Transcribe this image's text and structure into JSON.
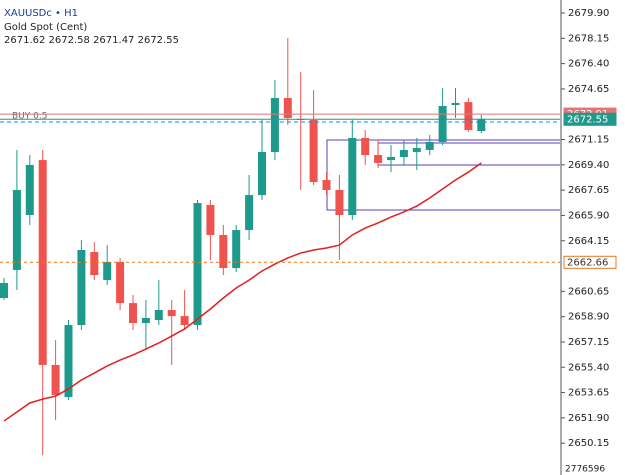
{
  "chart_data": {
    "type": "candlestick",
    "title": "XAUUSDc • H1",
    "subtitle": "Gold Spot (Cent)",
    "ohlc_text": "2671.62 2672.58 2671.47 2672.55",
    "up_color": "#1e9a8c",
    "down_color": "#ef5350",
    "open": [
      2660.19,
      2662.13,
      2665.93,
      2669.73,
      2655.56,
      2653.34,
      2658.32,
      2663.37,
      2661.43,
      2662.68,
      2659.84,
      2658.46,
      2658.67,
      2659.36,
      2658.94,
      2658.32,
      2666.62,
      2664.55,
      2662.26,
      2664.89,
      2667.31,
      2670.29,
      2674.02,
      2672.57,
      2672.5,
      2668.35,
      2667.66,
      2665.93,
      2671.26,
      2670.08,
      2669.73,
      2669.94,
      2670.29,
      2670.43,
      2670.98,
      2673.54,
      2673.74,
      2671.74
    ],
    "high": [
      2661.57,
      2670.43,
      2670.08,
      2670.43,
      2657.28,
      2658.67,
      2664.2,
      2664.06,
      2663.85,
      2662.96,
      2660.4,
      2660.05,
      2661.43,
      2660.05,
      2660.74,
      2666.97,
      2666.97,
      2665.24,
      2665.24,
      2668.7,
      2672.5,
      2675.27,
      2678.17,
      2675.82,
      2674.57,
      2668.9,
      2668.7,
      2672.5,
      2671.81,
      2671.12,
      2670.77,
      2671.12,
      2671.26,
      2671.46,
      2674.71,
      2674.71,
      2674.02,
      2672.85
    ],
    "low": [
      2660.05,
      2660.74,
      2665.24,
      2649.33,
      2651.75,
      2653.14,
      2657.98,
      2661.43,
      2661.09,
      2659.36,
      2657.98,
      2656.59,
      2658.32,
      2655.56,
      2657.98,
      2657.98,
      2662.82,
      2661.78,
      2661.99,
      2664.2,
      2666.97,
      2669.73,
      2672.15,
      2667.66,
      2668.0,
      2667.31,
      2662.82,
      2665.58,
      2669.39,
      2669.18,
      2668.9,
      2669.39,
      2669.04,
      2670.08,
      2670.77,
      2672.64,
      2671.67,
      2671.6
    ],
    "close": [
      2661.23,
      2667.66,
      2669.39,
      2655.56,
      2653.48,
      2658.32,
      2663.51,
      2661.78,
      2662.68,
      2659.84,
      2658.46,
      2658.81,
      2659.36,
      2658.94,
      2658.32,
      2666.76,
      2664.55,
      2662.26,
      2664.89,
      2667.31,
      2670.29,
      2674.02,
      2672.64,
      2672.5,
      2668.21,
      2667.66,
      2665.93,
      2671.26,
      2670.08,
      2669.53,
      2669.94,
      2670.43,
      2670.56,
      2670.98,
      2673.47,
      2673.68,
      2671.81,
      2672.55
    ],
    "ma": {
      "color": "#e02020",
      "values": [
        2651.68,
        2652.31,
        2652.93,
        2653.2,
        2653.41,
        2653.9,
        2654.52,
        2655.0,
        2655.49,
        2655.9,
        2656.25,
        2656.66,
        2657.08,
        2657.56,
        2658.05,
        2658.74,
        2659.43,
        2660.19,
        2660.88,
        2661.43,
        2662.06,
        2662.54,
        2662.96,
        2663.3,
        2663.51,
        2663.65,
        2663.85,
        2664.55,
        2665.03,
        2665.38,
        2665.79,
        2666.14,
        2666.55,
        2667.11,
        2667.73,
        2668.35,
        2668.9,
        2669.53
      ]
    },
    "ylim": [
      2647.95,
      2680.8
    ],
    "yticks": [
      {
        "value": 2679.9,
        "label": "2679.90"
      },
      2678.15,
      {
        "value": 2676.4,
        "label": "2676.40"
      },
      2674.65,
      2671.15,
      {
        "value": 2669.4,
        "label": "2669.40"
      },
      2667.65,
      {
        "value": 2665.9,
        "label": "2665.90"
      },
      2664.15,
      2660.65,
      {
        "value": 2658.9,
        "label": "2658.90"
      },
      2657.15,
      {
        "value": 2655.4,
        "label": "2655.40"
      },
      2653.65,
      {
        "value": 2651.9,
        "label": "2651.90"
      },
      2650.15
    ],
    "levels": [
      {
        "value": 2672.91,
        "color": "#e57373",
        "style": "solid",
        "box": "fill"
      },
      {
        "value": 2672.55,
        "color": "#1e9a8c",
        "style": "solid",
        "box": "fill"
      },
      {
        "value": 2662.66,
        "color": "#e8771e",
        "style": "dashed",
        "box": "outline"
      }
    ],
    "buy": {
      "label": "BUY 0.5",
      "value": 2672.36,
      "color": "#1e88e5"
    },
    "bottom_label": "2776596"
  }
}
